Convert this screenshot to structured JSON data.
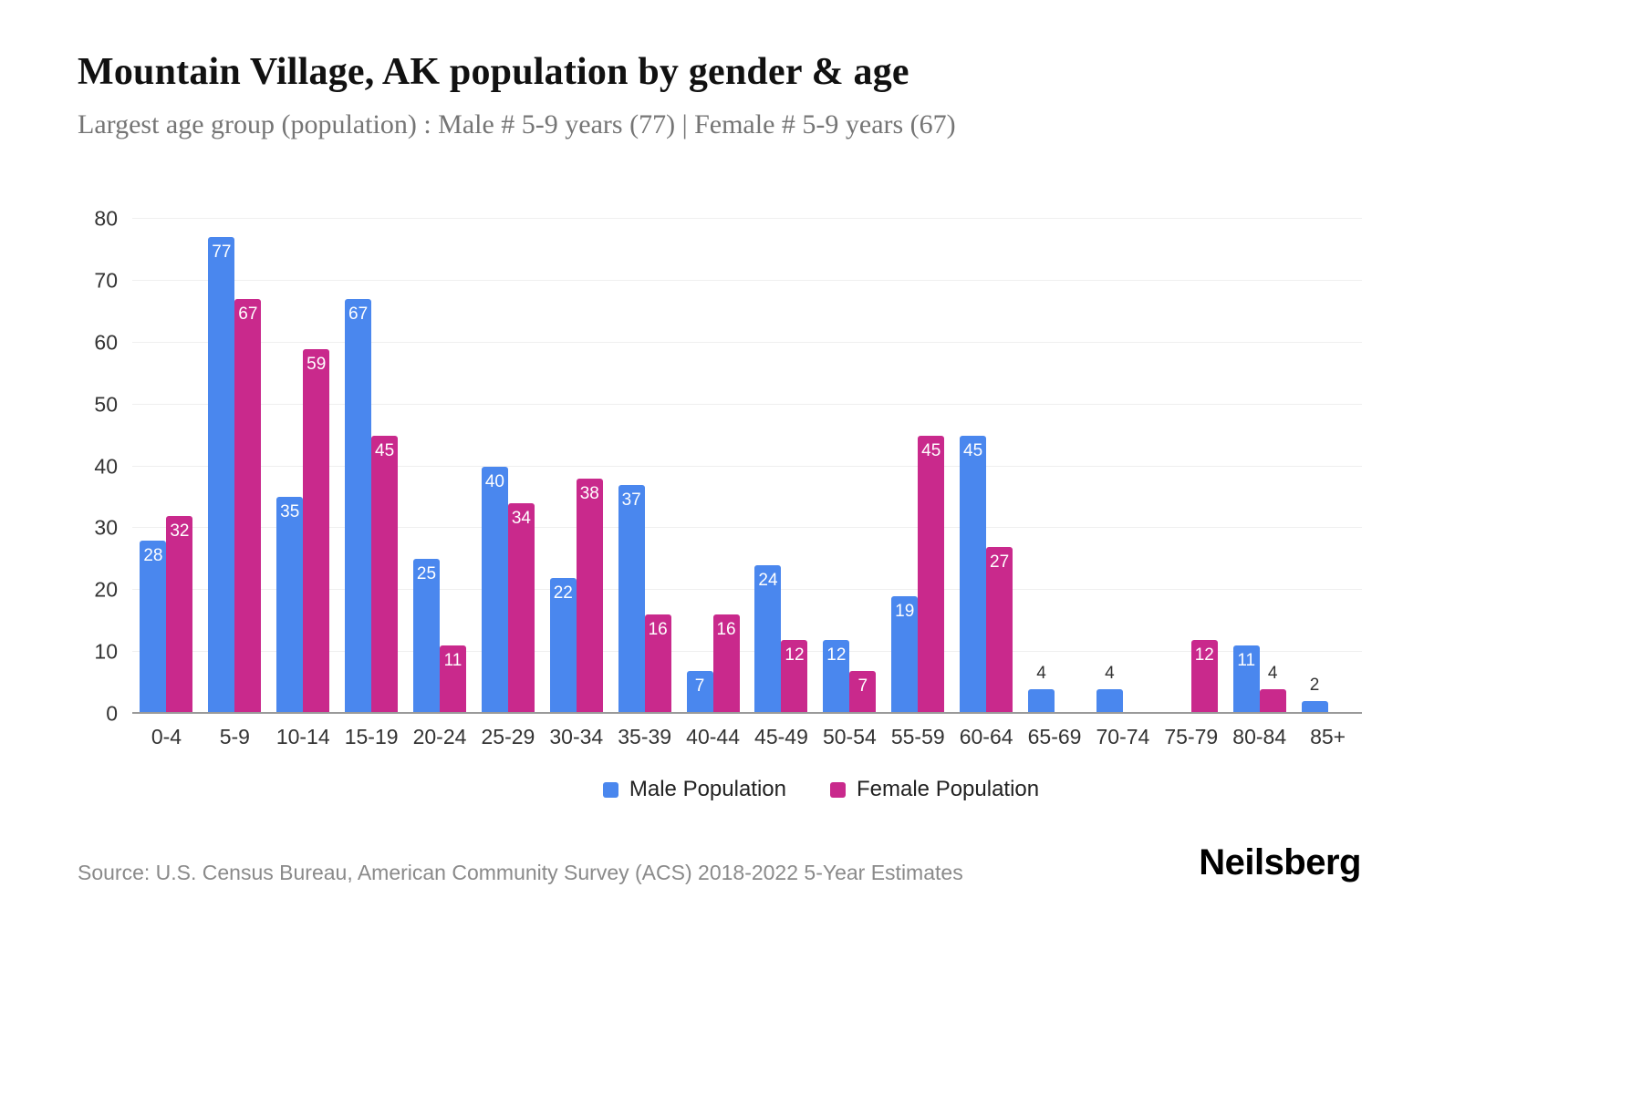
{
  "header": {
    "title": "Mountain Village, AK population by gender & age",
    "subtitle": "Largest age group (population) : Male # 5-9 years (77) | Female # 5-9 years (67)"
  },
  "footer": {
    "source": "Source: U.S. Census Bureau, American Community Survey (ACS) 2018-2022 5-Year Estimates",
    "brand": "Neilsberg"
  },
  "chart_data": {
    "type": "bar",
    "title": "Mountain Village, AK population by gender & age",
    "categories": [
      "0-4",
      "5-9",
      "10-14",
      "15-19",
      "20-24",
      "25-29",
      "30-34",
      "35-39",
      "40-44",
      "45-49",
      "50-54",
      "55-59",
      "60-64",
      "65-69",
      "70-74",
      "75-79",
      "80-84",
      "85+"
    ],
    "series": [
      {
        "name": "Male Population",
        "color": "#4a87ee",
        "values": [
          28,
          77,
          35,
          67,
          25,
          40,
          22,
          37,
          7,
          24,
          12,
          19,
          45,
          4,
          4,
          0,
          11,
          2
        ]
      },
      {
        "name": "Female Population",
        "color": "#c9298c",
        "values": [
          32,
          67,
          59,
          45,
          11,
          34,
          38,
          16,
          16,
          12,
          7,
          45,
          27,
          0,
          0,
          12,
          4,
          0
        ]
      }
    ],
    "xlabel": "",
    "ylabel": "",
    "ylim": [
      0,
      80
    ],
    "yticks": [
      0,
      10,
      20,
      30,
      40,
      50,
      60,
      70,
      80
    ],
    "grid": true,
    "legend_position": "bottom",
    "label_inside_threshold": 7
  }
}
